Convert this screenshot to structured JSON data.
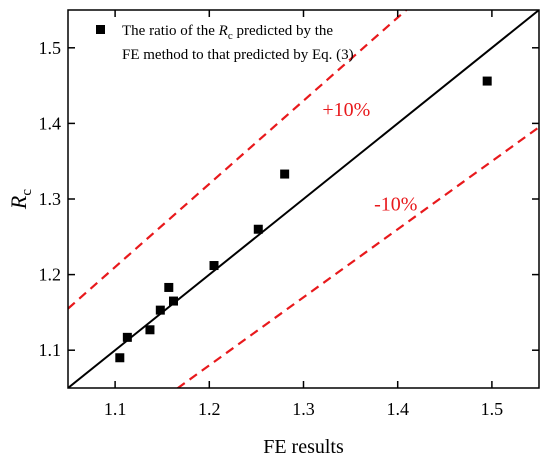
{
  "chart_data": {
    "type": "scatter",
    "xlabel": "FE results",
    "ylabel": {
      "main": "R",
      "sub": "c"
    },
    "xlim": [
      1.05,
      1.55
    ],
    "ylim": [
      1.05,
      1.55
    ],
    "xticks": [
      "1.1",
      "1.2",
      "1.3",
      "1.4",
      "1.5"
    ],
    "yticks": [
      "1.1",
      "1.2",
      "1.3",
      "1.4",
      "1.5"
    ],
    "grid": false,
    "legend": {
      "placement": "top-left",
      "line1": {
        "pre": "The ratio of the ",
        "main": "R",
        "sub": "c",
        "post": " predicted by the"
      },
      "line2": "FE method to that predicted by Eq. (3)"
    },
    "points": [
      {
        "x": 1.105,
        "y": 1.09
      },
      {
        "x": 1.113,
        "y": 1.117
      },
      {
        "x": 1.137,
        "y": 1.127
      },
      {
        "x": 1.148,
        "y": 1.153
      },
      {
        "x": 1.157,
        "y": 1.183
      },
      {
        "x": 1.162,
        "y": 1.165
      },
      {
        "x": 1.205,
        "y": 1.212
      },
      {
        "x": 1.252,
        "y": 1.26
      },
      {
        "x": 1.28,
        "y": 1.333
      },
      {
        "x": 1.495,
        "y": 1.456
      }
    ],
    "reference_lines": [
      {
        "kind": "y=x",
        "slope": 1.0,
        "color": "#000000",
        "dash": false
      },
      {
        "kind": "+10%",
        "slope": 1.1,
        "color": "#e8191c",
        "dash": true
      },
      {
        "kind": "-10%",
        "slope": 0.9,
        "color": "#e8191c",
        "dash": true
      }
    ],
    "annotations": [
      {
        "text": "+10%",
        "x": 1.32,
        "y": 1.41,
        "color": "#e8191c"
      },
      {
        "text": "-10%",
        "x": 1.375,
        "y": 1.285,
        "color": "#e8191c"
      }
    ],
    "marker_color": "#000000"
  }
}
